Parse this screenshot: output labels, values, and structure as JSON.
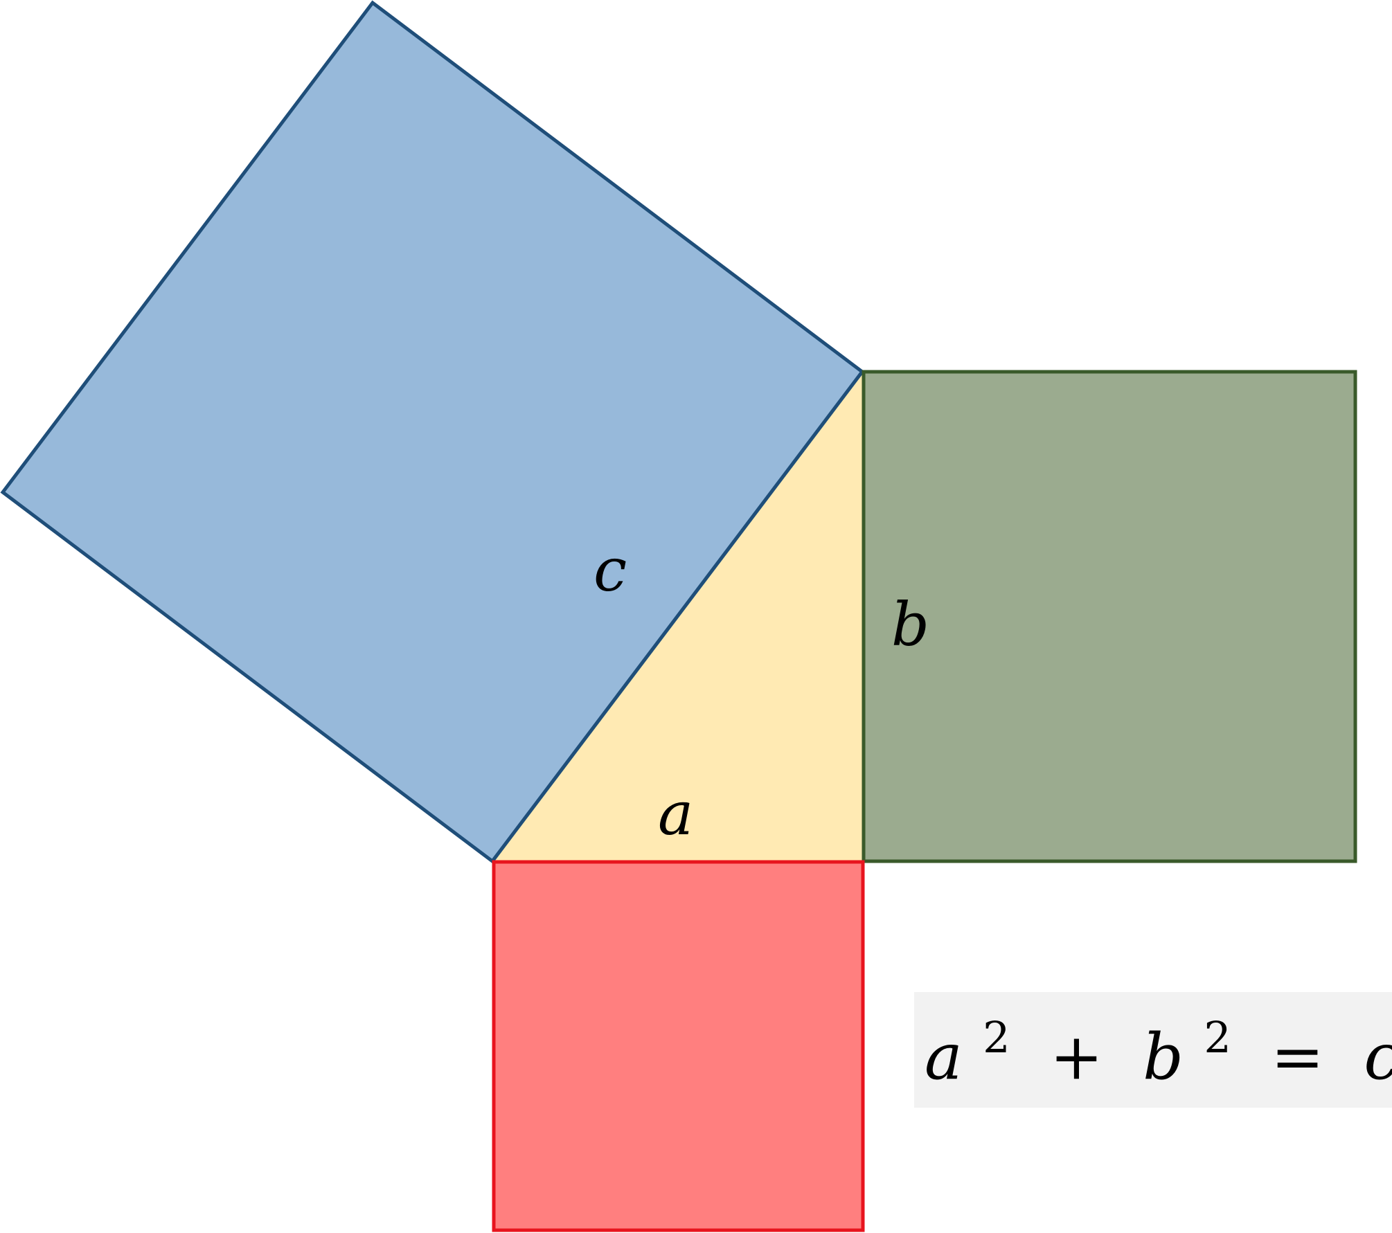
{
  "labels": {
    "a": "a",
    "b": "b",
    "c": "c"
  },
  "formula": {
    "a": "a",
    "b": "b",
    "c": "c",
    "exponent": "2",
    "plus": "+",
    "equals": "="
  },
  "colors": {
    "triangle_fill": "#FFEAB3",
    "square_c_fill": "#97B9DA",
    "square_c_stroke": "#1F4E79",
    "square_b_fill": "#9BAB8F",
    "square_b_stroke": "#3A5A2A",
    "square_a_fill": "#FF7F7F",
    "square_a_stroke": "#E8141E",
    "formula_background": "#F2F2F2"
  }
}
